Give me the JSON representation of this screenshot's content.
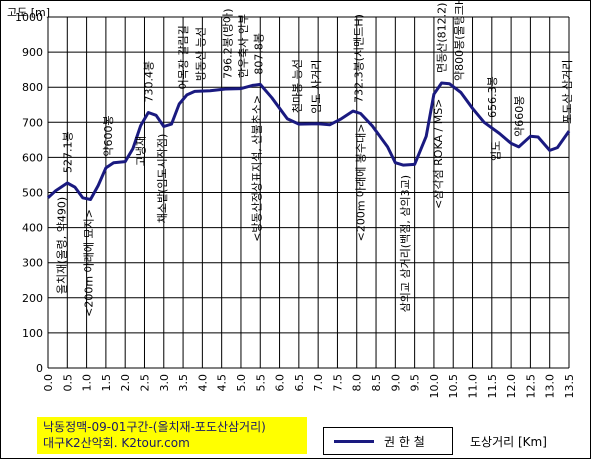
{
  "chart_data": {
    "type": "line",
    "ylabel": "고도 [m]",
    "xlabel": "도상거리 [Km]",
    "ylim": [
      0,
      1000
    ],
    "xlim": [
      0,
      13.5
    ],
    "grid": true,
    "yticks": [
      "0",
      "100",
      "200",
      "300",
      "400",
      "500",
      "600",
      "700",
      "800",
      "900",
      "1000"
    ],
    "xticks": [
      "0.0",
      "0.5",
      "1.0",
      "1.5",
      "2.0",
      "2.5",
      "3.0",
      "3.5",
      "4.0",
      "4.5",
      "5.0",
      "5.5",
      "6.0",
      "6.5",
      "7.0",
      "7.5",
      "8.0",
      "8.5",
      "9.0",
      "9.5",
      "10.0",
      "10.5",
      "11.0",
      "11.5",
      "12.0",
      "12.5",
      "13.0",
      "13.5"
    ],
    "series": [
      {
        "name": "권 한 철",
        "color": "#1a1a80",
        "points": [
          [
            0.0,
            485
          ],
          [
            0.2,
            505
          ],
          [
            0.5,
            527
          ],
          [
            0.7,
            515
          ],
          [
            0.9,
            485
          ],
          [
            1.1,
            480
          ],
          [
            1.3,
            520
          ],
          [
            1.5,
            570
          ],
          [
            1.7,
            585
          ],
          [
            2.0,
            588
          ],
          [
            2.2,
            625
          ],
          [
            2.4,
            690
          ],
          [
            2.6,
            728
          ],
          [
            2.8,
            720
          ],
          [
            3.0,
            688
          ],
          [
            3.2,
            695
          ],
          [
            3.4,
            752
          ],
          [
            3.6,
            778
          ],
          [
            3.8,
            788
          ],
          [
            4.2,
            790
          ],
          [
            4.6,
            795
          ],
          [
            5.0,
            796
          ],
          [
            5.3,
            805
          ],
          [
            5.5,
            808
          ],
          [
            5.8,
            770
          ],
          [
            6.0,
            740
          ],
          [
            6.2,
            710
          ],
          [
            6.5,
            695
          ],
          [
            7.0,
            696
          ],
          [
            7.3,
            693
          ],
          [
            7.6,
            710
          ],
          [
            7.9,
            732
          ],
          [
            8.1,
            725
          ],
          [
            8.4,
            690
          ],
          [
            8.8,
            630
          ],
          [
            9.0,
            585
          ],
          [
            9.2,
            578
          ],
          [
            9.5,
            580
          ],
          [
            9.8,
            660
          ],
          [
            10.0,
            780
          ],
          [
            10.2,
            812
          ],
          [
            10.4,
            810
          ],
          [
            10.7,
            785
          ],
          [
            11.0,
            740
          ],
          [
            11.3,
            700
          ],
          [
            11.7,
            668
          ],
          [
            12.0,
            640
          ],
          [
            12.2,
            630
          ],
          [
            12.5,
            660
          ],
          [
            12.7,
            658
          ],
          [
            13.0,
            620
          ],
          [
            13.2,
            628
          ],
          [
            13.5,
            675
          ]
        ]
      }
    ],
    "annotations": [
      {
        "x": 0.5,
        "text": "527.1봉",
        "pos": "above"
      },
      {
        "x": 0.35,
        "text": "올치재(올령, 약490)",
        "pos": "below"
      },
      {
        "x": 1.05,
        "text": "<200m 아래에 묘지>",
        "pos": "below"
      },
      {
        "x": 1.55,
        "text": "약600봉",
        "pos": "above"
      },
      {
        "x": 2.6,
        "text": "730.4봉",
        "pos": "above"
      },
      {
        "x": 2.4,
        "text": "고냉재",
        "pos": "below"
      },
      {
        "x": 2.95,
        "text": "채소밭(임도시작점)",
        "pos": "below"
      },
      {
        "x": 3.5,
        "text": "어목장 갈림길",
        "pos": "above"
      },
      {
        "x": 3.95,
        "text": "방동산 능선",
        "pos": "above"
      },
      {
        "x": 4.65,
        "text": "796.2봉(방아)",
        "pos": "above"
      },
      {
        "x": 5.05,
        "text": "한우축사 안부",
        "pos": "above"
      },
      {
        "x": 5.45,
        "text": "807.8봉",
        "pos": "above"
      },
      {
        "x": 5.4,
        "text": "<방동산정상표지석, 산불초소>",
        "pos": "below"
      },
      {
        "x": 6.45,
        "text": "천마봉 능선",
        "pos": "above"
      },
      {
        "x": 6.95,
        "text": "임도 사거리",
        "pos": "above"
      },
      {
        "x": 8.05,
        "text": "732.3봉(시멘트H)",
        "pos": "above"
      },
      {
        "x": 8.1,
        "text": "<200m 아래에 봉수대>",
        "pos": "below"
      },
      {
        "x": 9.25,
        "text": "삼의교 삼거리(백점, 삼의3교)",
        "pos": "below"
      },
      {
        "x": 10.2,
        "text": "면동산(812.2)",
        "pos": "above"
      },
      {
        "x": 10.1,
        "text": "<삼각점 ROKA / MS>",
        "pos": "below"
      },
      {
        "x": 10.65,
        "text": "약800봉(물탱크H)",
        "pos": "above"
      },
      {
        "x": 11.5,
        "text": "656.3봉",
        "pos": "above"
      },
      {
        "x": 11.6,
        "text": "임도",
        "pos": "below"
      },
      {
        "x": 12.2,
        "text": "약660봉",
        "pos": "above"
      },
      {
        "x": 13.45,
        "text": "포도산 삼거리",
        "pos": "above"
      }
    ]
  },
  "header": {
    "y_unit_label": "고도 [m]"
  },
  "credit": {
    "line1": "낙동정맥-09-01구간-(올치재-포도산삼거리)",
    "line2": "대구K2산악회. K2tour.com"
  },
  "legend": {
    "label": "권 한 철",
    "color": "#1a1a80"
  },
  "x_unit_label": "도상거리 [Km]"
}
